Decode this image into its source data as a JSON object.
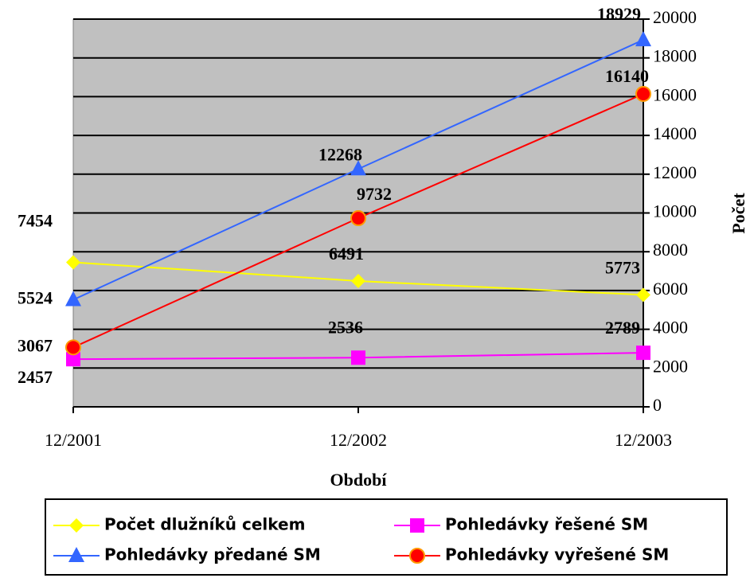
{
  "chart_data": {
    "type": "line",
    "x_label": "Období",
    "y_label": "Počet",
    "categories": [
      "12/2001",
      "12/2002",
      "12/2003"
    ],
    "series": [
      {
        "name": "Počet dlužníků celkem",
        "color": "#ffff00",
        "marker": "diamond",
        "values": [
          7454,
          6491,
          5773
        ]
      },
      {
        "name": "Pohledávky řešené SM",
        "color": "#ff00ff",
        "marker": "square",
        "values": [
          2457,
          2536,
          2789
        ]
      },
      {
        "name": "Pohledávky předané SM",
        "color": "#3366ff",
        "marker": "triangle",
        "values": [
          5524,
          12268,
          18929
        ]
      },
      {
        "name": "Pohledávky vyřešené SM",
        "color": "#ff0000",
        "marker": "circle",
        "values": [
          3067,
          9732,
          16140
        ]
      }
    ],
    "ylim": [
      0,
      20000
    ],
    "yticks": [
      0,
      2000,
      4000,
      6000,
      8000,
      10000,
      12000,
      14000,
      16000,
      18000,
      20000
    ],
    "grid": true,
    "plot_background": "#c0c0c0",
    "legend": "bottom"
  }
}
